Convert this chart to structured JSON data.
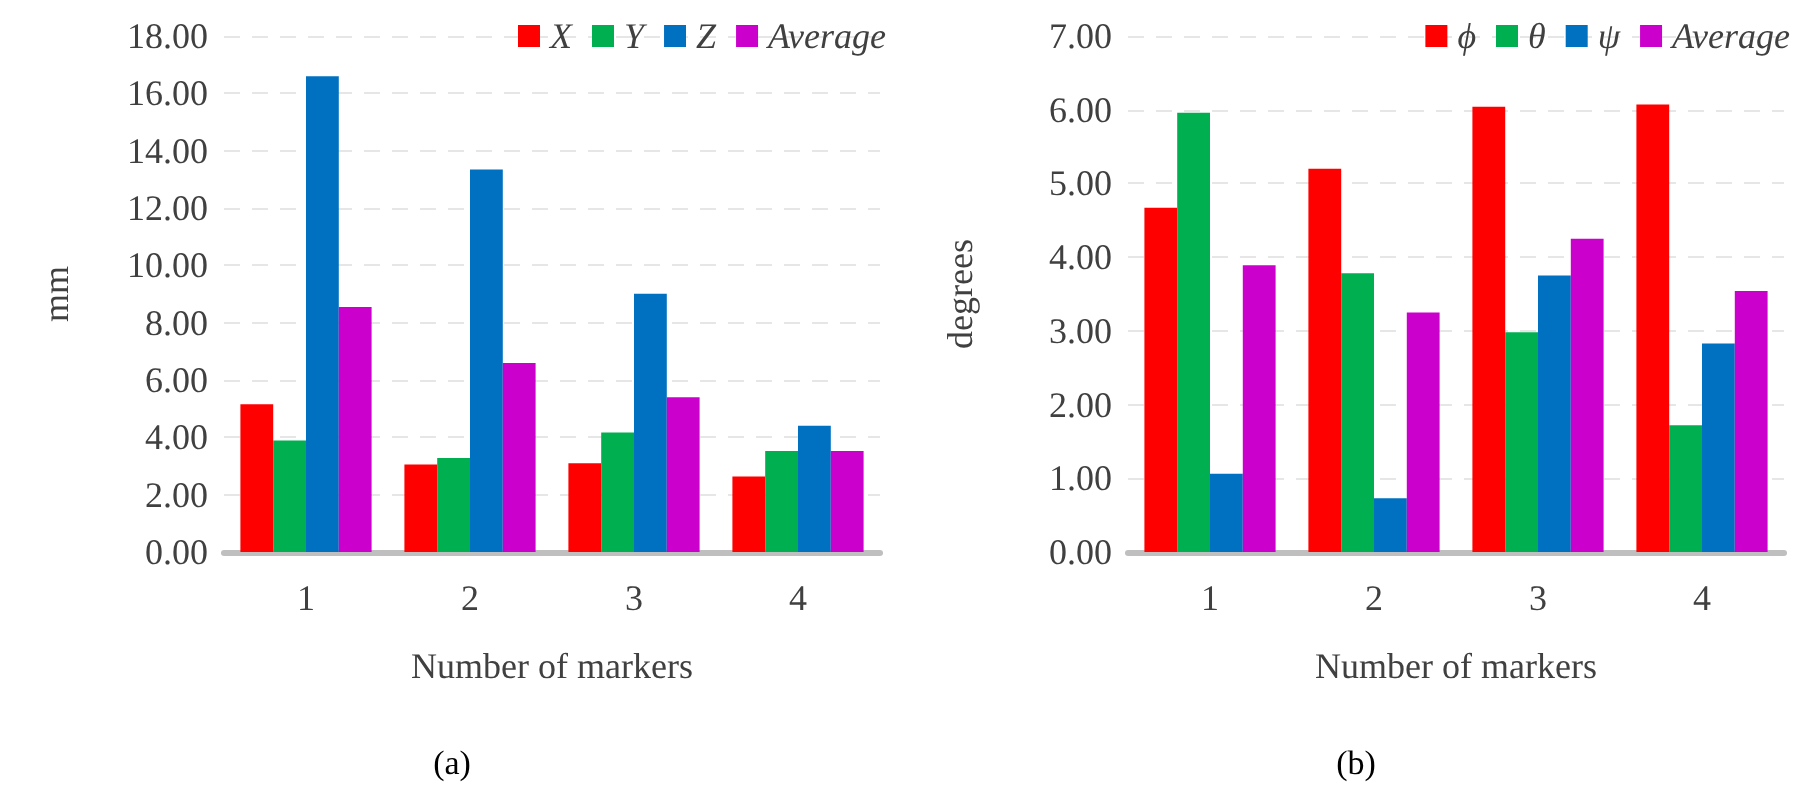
{
  "chart_data": [
    {
      "type": "bar",
      "xlabel": "Number of markers",
      "ylabel": "mm",
      "annotations": [
        "(a)"
      ],
      "categories": [
        "1",
        "2",
        "3",
        "4"
      ],
      "series": [
        {
          "name": "X",
          "color": "#ff0000",
          "values": [
            5.15,
            3.05,
            3.1,
            2.63
          ]
        },
        {
          "name": "Y",
          "color": "#00b050",
          "values": [
            3.89,
            3.28,
            4.17,
            3.52
          ]
        },
        {
          "name": "Z",
          "color": "#0070c0",
          "values": [
            16.6,
            13.34,
            9.01,
            4.4
          ]
        },
        {
          "name": "Average",
          "color": "#cc00cc",
          "values": [
            8.55,
            6.59,
            5.4,
            3.52
          ]
        }
      ],
      "ylim": [
        0,
        18
      ],
      "yticks": [
        {
          "value": 0,
          "label": "0.00"
        },
        {
          "value": 2,
          "label": "2.00"
        },
        {
          "value": 4,
          "label": "4.00"
        },
        {
          "value": 6,
          "label": "6.00"
        },
        {
          "value": 8,
          "label": "8.00"
        },
        {
          "value": 10,
          "label": "10.00"
        },
        {
          "value": 12,
          "label": "12.00"
        },
        {
          "value": 14,
          "label": "14.00"
        },
        {
          "value": 16,
          "label": "16.00"
        },
        {
          "value": 18,
          "label": "18.00"
        }
      ],
      "grid": "y",
      "legend": "top right"
    },
    {
      "type": "bar",
      "xlabel": "Number of markers",
      "ylabel": "degrees",
      "annotations": [
        "(b)"
      ],
      "categories": [
        "1",
        "2",
        "3",
        "4"
      ],
      "series": [
        {
          "name": "ϕ",
          "color": "#ff0000",
          "values": [
            4.67,
            5.2,
            6.04,
            6.07
          ]
        },
        {
          "name": "θ",
          "color": "#00b050",
          "values": [
            5.96,
            3.78,
            2.98,
            1.72
          ]
        },
        {
          "name": "ψ",
          "color": "#0070c0",
          "values": [
            1.06,
            0.73,
            3.75,
            2.83
          ]
        },
        {
          "name": "Average",
          "color": "#cc00cc",
          "values": [
            3.89,
            3.25,
            4.25,
            3.54
          ]
        }
      ],
      "ylim": [
        0,
        7
      ],
      "yticks": [
        {
          "value": 0,
          "label": "0.00"
        },
        {
          "value": 1,
          "label": "1.00"
        },
        {
          "value": 2,
          "label": "2.00"
        },
        {
          "value": 3,
          "label": "3.00"
        },
        {
          "value": 4,
          "label": "4.00"
        },
        {
          "value": 5,
          "label": "5.00"
        },
        {
          "value": 6,
          "label": "6.00"
        },
        {
          "value": 7,
          "label": "7.00"
        }
      ],
      "grid": "y",
      "legend": "top right"
    }
  ]
}
